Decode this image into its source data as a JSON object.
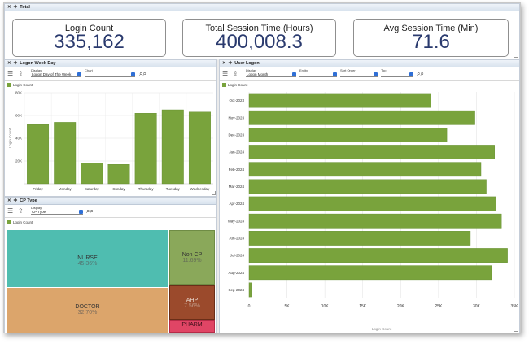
{
  "total": {
    "title": "Total",
    "kpis": [
      {
        "label": "Login Count",
        "value": "335,162"
      },
      {
        "label": "Total Session Time (Hours)",
        "value": "400,008.3"
      },
      {
        "label": "Avg Session Time (Min)",
        "value": "71.6"
      }
    ]
  },
  "logon_week_day": {
    "title": "Logon Week Day",
    "display_label": "Display",
    "display_value": "Logon Day of The Week",
    "chart_label": "Chart",
    "legend": "Login Count"
  },
  "cp_type": {
    "title": "CP Type",
    "display_label": "Display",
    "display_value": "CP Type",
    "legend": "Login Count"
  },
  "user_logon": {
    "title": "User Logon",
    "display_label": "Display",
    "display_value": "Logon Month",
    "entity_label": "Entity",
    "sort_label": "Sort Order",
    "top_label": "Top",
    "legend": "Login Count"
  },
  "chart_data": [
    {
      "type": "bar",
      "ylabel": "Login Count",
      "ylim": [
        0,
        80000
      ],
      "y_ticks": [
        "20K",
        "40K",
        "60K",
        "80K"
      ],
      "y_tick_values": [
        20000,
        40000,
        60000,
        80000
      ],
      "categories": [
        "Friday",
        "Monday",
        "Saturday",
        "Sunday",
        "Thursday",
        "Tuesday",
        "Wednesday"
      ],
      "values": [
        52000,
        54000,
        18000,
        17000,
        62000,
        65000,
        63000
      ],
      "color": "#79a33c"
    },
    {
      "type": "treemap",
      "items": [
        {
          "name": "NURSE",
          "pct": "45.36%",
          "color": "#4fbdb0"
        },
        {
          "name": "DOCTOR",
          "pct": "32.70%",
          "color": "#dca56b"
        },
        {
          "name": "Non CP",
          "pct": "11.69%",
          "color": "#8aa85a"
        },
        {
          "name": "AHP",
          "pct": "7.56%",
          "color": "#9b4a2c"
        },
        {
          "name": "PHARM",
          "pct": "",
          "color": "#e04565"
        }
      ]
    },
    {
      "type": "bar",
      "orientation": "horizontal",
      "xlabel": "Login Count",
      "xlim": [
        0,
        35000
      ],
      "x_ticks": [
        "0",
        "5K",
        "10K",
        "15K",
        "20K",
        "25K",
        "30K",
        "35K"
      ],
      "x_tick_values": [
        0,
        5000,
        10000,
        15000,
        20000,
        25000,
        30000,
        35000
      ],
      "categories": [
        "Oct-2023",
        "Nov-2023",
        "Dec-2023",
        "Jan-2024",
        "Feb-2024",
        "Mar-2024",
        "Apr-2024",
        "May-2024",
        "Jun-2024",
        "Jul-2024",
        "Aug-2024",
        "Sep-2024"
      ],
      "values": [
        24000,
        29800,
        26100,
        32400,
        30600,
        31300,
        32600,
        33300,
        29200,
        34100,
        32000,
        400
      ],
      "color": "#79a33c"
    }
  ]
}
